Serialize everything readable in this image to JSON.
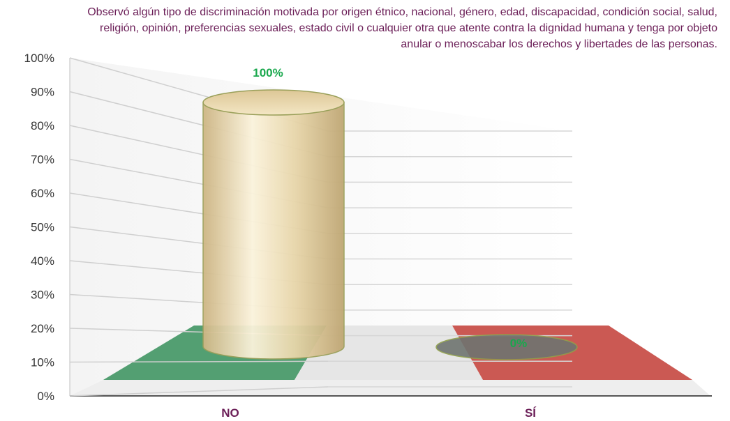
{
  "chart_data": {
    "type": "bar",
    "title": "Observó algún tipo de discriminación motivada por origen étnico, nacional, género, edad, discapacidad, condición social, salud, religión, opinión, preferencias sexuales, estado civil o cualquier otra que atente contra la dignidad humana y tenga por objeto anular o menoscabar los derechos y libertades de las personas.",
    "categories": [
      "NO",
      "SÍ"
    ],
    "values": [
      100,
      0
    ],
    "data_labels": [
      "100%",
      "0%"
    ],
    "y_ticks": [
      "0%",
      "10%",
      "20%",
      "30%",
      "40%",
      "50%",
      "60%",
      "70%",
      "80%",
      "90%",
      "100%"
    ],
    "ylim": [
      0,
      100
    ],
    "grid": true,
    "legend": "none",
    "colors": {
      "cylinder": "#e6d3a3",
      "label": "#1aa84d",
      "title": "#6b1e57",
      "floor_green": "#4a9a6a",
      "floor_white": "#e4e4e4",
      "floor_red": "#c8504a"
    }
  }
}
